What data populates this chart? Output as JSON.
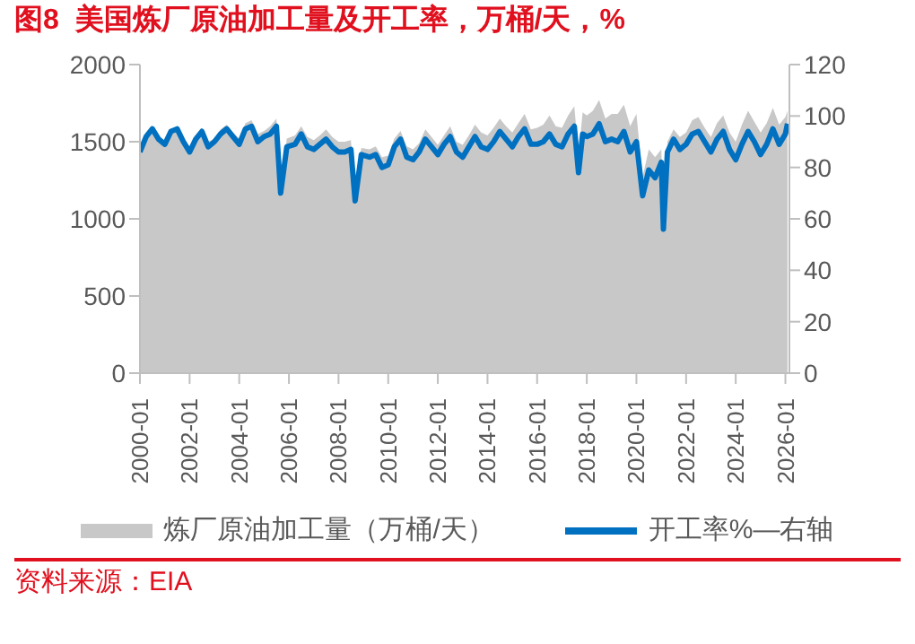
{
  "chart_data": {
    "type": "line",
    "title": "图8  美国炼厂原油加工量及开工率，万桶/天，%",
    "annotations": [
      "资料来源：EIA"
    ],
    "x": [
      "2000-01",
      "2000-04",
      "2000-07",
      "2000-10",
      "2001-01",
      "2001-04",
      "2001-07",
      "2001-10",
      "2002-01",
      "2002-04",
      "2002-07",
      "2002-10",
      "2003-01",
      "2003-04",
      "2003-07",
      "2003-10",
      "2004-01",
      "2004-04",
      "2004-07",
      "2004-10",
      "2005-01",
      "2005-04",
      "2005-07",
      "2005-09",
      "2005-12",
      "2006-04",
      "2006-07",
      "2006-10",
      "2007-01",
      "2007-04",
      "2007-07",
      "2007-10",
      "2008-01",
      "2008-04",
      "2008-07",
      "2008-09",
      "2008-12",
      "2009-04",
      "2009-07",
      "2009-10",
      "2010-01",
      "2010-04",
      "2010-07",
      "2010-10",
      "2011-01",
      "2011-04",
      "2011-07",
      "2011-10",
      "2012-01",
      "2012-04",
      "2012-07",
      "2012-10",
      "2013-01",
      "2013-04",
      "2013-07",
      "2013-10",
      "2014-01",
      "2014-04",
      "2014-07",
      "2014-10",
      "2015-01",
      "2015-04",
      "2015-07",
      "2015-10",
      "2016-01",
      "2016-04",
      "2016-07",
      "2016-10",
      "2017-01",
      "2017-04",
      "2017-07",
      "2017-09",
      "2017-11",
      "2018-01",
      "2018-04",
      "2018-07",
      "2018-10",
      "2019-01",
      "2019-04",
      "2019-07",
      "2019-10",
      "2020-01",
      "2020-04",
      "2020-07",
      "2020-10",
      "2021-01",
      "2021-02",
      "2021-04",
      "2021-07",
      "2021-10",
      "2022-01",
      "2022-04",
      "2022-07",
      "2022-10",
      "2023-01",
      "2023-04",
      "2023-07",
      "2023-10",
      "2024-01",
      "2024-04",
      "2024-07",
      "2024-10",
      "2025-01",
      "2025-04",
      "2025-07",
      "2025-10",
      "2026-01",
      "2026-02"
    ],
    "series": [
      {
        "name": "炼厂原油加工量（万桶/天）",
        "type": "area",
        "color": "#c8c8c8",
        "values": [
          1480,
          1560,
          1600,
          1540,
          1500,
          1580,
          1600,
          1530,
          1470,
          1540,
          1590,
          1500,
          1520,
          1580,
          1610,
          1560,
          1520,
          1620,
          1640,
          1550,
          1570,
          1600,
          1650,
          1200,
          1520,
          1540,
          1600,
          1530,
          1510,
          1540,
          1580,
          1530,
          1500,
          1500,
          1510,
          1150,
          1460,
          1450,
          1470,
          1400,
          1410,
          1520,
          1570,
          1470,
          1450,
          1490,
          1580,
          1530,
          1480,
          1540,
          1600,
          1500,
          1480,
          1540,
          1610,
          1560,
          1540,
          1590,
          1650,
          1600,
          1560,
          1620,
          1680,
          1580,
          1590,
          1610,
          1670,
          1600,
          1590,
          1670,
          1730,
          1420,
          1690,
          1670,
          1700,
          1770,
          1650,
          1680,
          1680,
          1740,
          1600,
          1680,
          1270,
          1450,
          1400,
          1450,
          1000,
          1500,
          1580,
          1530,
          1560,
          1640,
          1660,
          1590,
          1530,
          1620,
          1670,
          1560,
          1500,
          1610,
          1700,
          1630,
          1560,
          1620,
          1720,
          1610,
          1660,
          1700
        ]
      },
      {
        "name": "开工率%—右轴",
        "axis": "y2",
        "color": "#0070c0",
        "values": [
          86,
          92,
          95,
          91,
          89,
          94,
          95,
          90,
          86,
          91,
          94,
          88,
          90,
          93,
          95,
          92,
          89,
          95,
          96,
          90,
          92,
          93,
          96,
          70,
          88,
          89,
          93,
          88,
          87,
          89,
          91,
          88,
          86,
          86,
          87,
          67,
          85,
          84,
          85,
          80,
          81,
          88,
          91,
          84,
          83,
          86,
          91,
          88,
          85,
          89,
          92,
          86,
          84,
          88,
          92,
          88,
          87,
          90,
          94,
          91,
          88,
          92,
          95,
          89,
          89,
          90,
          93,
          89,
          88,
          93,
          96,
          78,
          93,
          92,
          93,
          97,
          90,
          91,
          90,
          94,
          86,
          90,
          69,
          79,
          76,
          82,
          56,
          86,
          91,
          87,
          89,
          93,
          94,
          90,
          86,
          91,
          94,
          87,
          83,
          89,
          94,
          90,
          85,
          89,
          95,
          89,
          93,
          97
        ]
      }
    ],
    "xlim": [
      "2000-01",
      "2026-03"
    ],
    "xticks": [
      "2000-01",
      "2002-01",
      "2004-01",
      "2006-01",
      "2008-01",
      "2010-01",
      "2012-01",
      "2014-01",
      "2016-01",
      "2018-01",
      "2020-01",
      "2022-01",
      "2024-01",
      "2026-01"
    ],
    "ylim": [
      0,
      2000
    ],
    "yticks": [
      0,
      500,
      1000,
      1500,
      2000
    ],
    "y2lim": [
      0,
      120
    ],
    "y2ticks": [
      0,
      20,
      40,
      60,
      80,
      100,
      120
    ],
    "grid": false,
    "legend": "bottom",
    "marker": "none",
    "line_style": "solid"
  }
}
